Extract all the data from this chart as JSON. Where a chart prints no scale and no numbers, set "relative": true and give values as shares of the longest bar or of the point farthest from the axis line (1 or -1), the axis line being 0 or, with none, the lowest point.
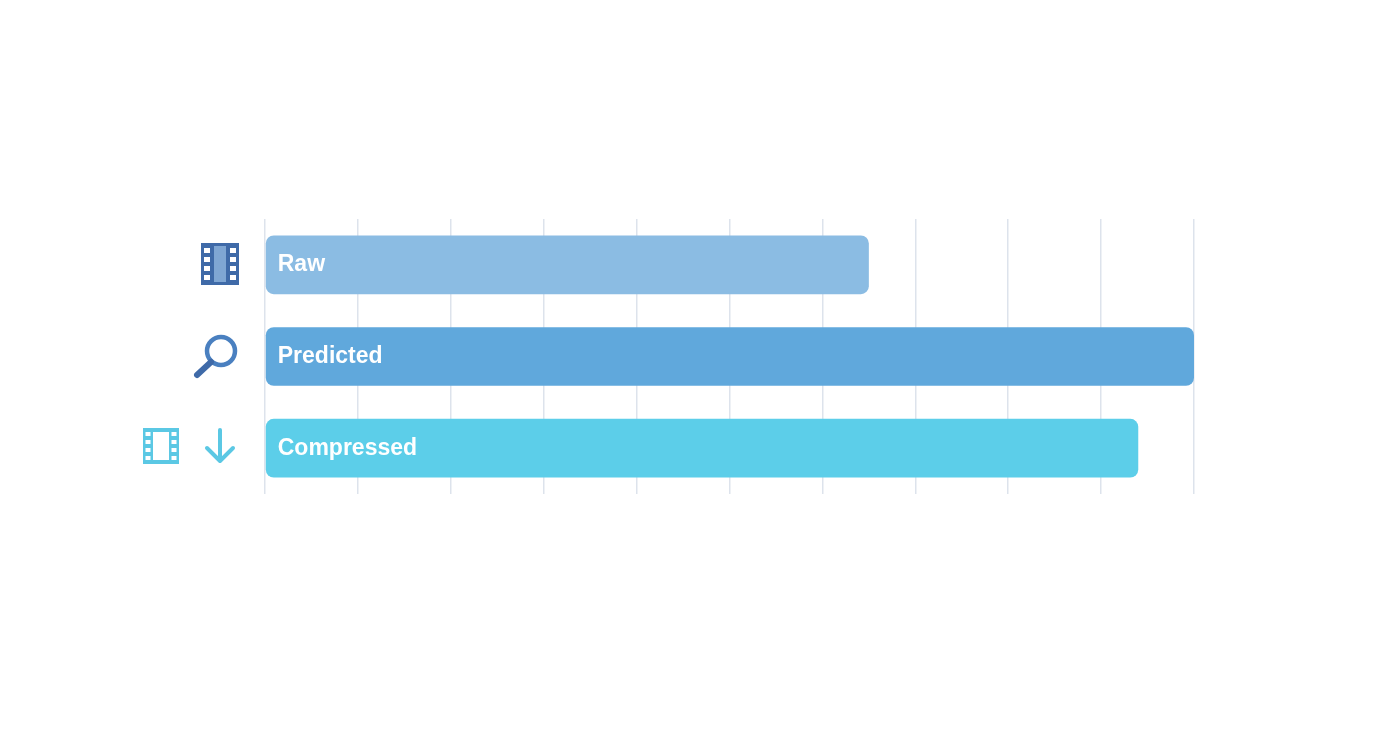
{
  "chart_data": {
    "type": "bar",
    "orientation": "horizontal",
    "relative": true,
    "categories": [
      "Raw",
      "Predicted",
      "Compressed"
    ],
    "values": [
      0.65,
      1,
      0.94
    ],
    "colors": [
      "#8bbce3",
      "#60a8dc",
      "#5ccee9"
    ],
    "grid": "x"
  }
}
